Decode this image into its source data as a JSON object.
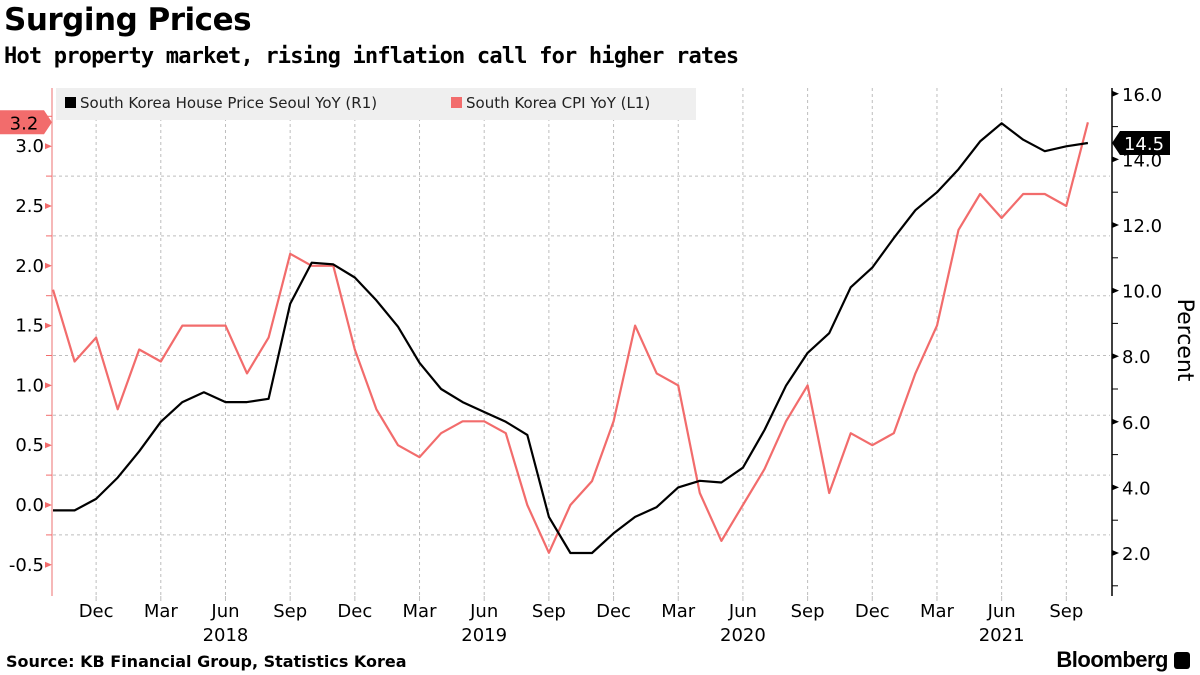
{
  "header": {
    "title": "Surging Prices",
    "subtitle": "Hot property market, rising inflation call for higher rates"
  },
  "footer": {
    "source": "Source: KB Financial Group, Statistics Korea",
    "brand": "Bloomberg"
  },
  "colors": {
    "house": "#000000",
    "cpi": "#f26c6c",
    "legend_bg": "#efefef"
  },
  "chart_data": {
    "type": "line",
    "title": "Surging Prices",
    "subtitle": "Hot property market, rising inflation call for higher rates",
    "xlabel": "",
    "ylabel_right": "Percent",
    "ylabel_left": "",
    "grid": true,
    "legend_position": "top-left",
    "x": [
      "2017-10",
      "2017-11",
      "2017-12",
      "2018-01",
      "2018-02",
      "2018-03",
      "2018-04",
      "2018-05",
      "2018-06",
      "2018-07",
      "2018-08",
      "2018-09",
      "2018-10",
      "2018-11",
      "2018-12",
      "2019-01",
      "2019-02",
      "2019-03",
      "2019-04",
      "2019-05",
      "2019-06",
      "2019-07",
      "2019-08",
      "2019-09",
      "2019-10",
      "2019-11",
      "2019-12",
      "2020-01",
      "2020-02",
      "2020-03",
      "2020-04",
      "2020-05",
      "2020-06",
      "2020-07",
      "2020-08",
      "2020-09",
      "2020-10",
      "2020-11",
      "2020-12",
      "2021-01",
      "2021-02",
      "2021-03",
      "2021-04",
      "2021-05",
      "2021-06",
      "2021-07",
      "2021-08",
      "2021-09",
      "2021-10"
    ],
    "x_tick_labels": [
      {
        "label": "Dec",
        "index": 2
      },
      {
        "label": "Mar",
        "index": 5
      },
      {
        "label": "Jun",
        "index": 8
      },
      {
        "label": "Sep",
        "index": 11
      },
      {
        "label": "Dec",
        "index": 14
      },
      {
        "label": "Mar",
        "index": 17
      },
      {
        "label": "Jun",
        "index": 20
      },
      {
        "label": "Sep",
        "index": 23
      },
      {
        "label": "Dec",
        "index": 26
      },
      {
        "label": "Mar",
        "index": 29
      },
      {
        "label": "Jun",
        "index": 32
      },
      {
        "label": "Sep",
        "index": 35
      },
      {
        "label": "Dec",
        "index": 38
      },
      {
        "label": "Mar",
        "index": 41
      },
      {
        "label": "Jun",
        "index": 44
      },
      {
        "label": "Sep",
        "index": 47
      }
    ],
    "x_year_labels": [
      {
        "label": "2018",
        "index": 8
      },
      {
        "label": "2019",
        "index": 20
      },
      {
        "label": "2020",
        "index": 32
      },
      {
        "label": "2021",
        "index": 44
      }
    ],
    "left_axis": {
      "ylim": [
        -0.75,
        3.4
      ],
      "ticks": [
        -0.5,
        0.0,
        0.5,
        1.0,
        1.5,
        2.0,
        2.5,
        3.0
      ],
      "tick_labels": [
        "-0.5",
        "0.0",
        "0.5",
        "1.0",
        "1.5",
        "2.0",
        "2.5",
        "3.0"
      ]
    },
    "right_axis": {
      "ylim": [
        0.8,
        16.3
      ],
      "ticks": [
        2.0,
        4.0,
        6.0,
        8.0,
        10.0,
        12.0,
        14.0,
        16.0
      ],
      "tick_labels": [
        "2.0",
        "4.0",
        "6.0",
        "8.0",
        "10.0",
        "12.0",
        "14.0",
        "16.0"
      ]
    },
    "series": [
      {
        "name": "South Korea House Price Seoul YoY",
        "axis_tag": "(R1)",
        "axis": "right",
        "last_value_label": "14.5",
        "values": [
          3.3,
          3.3,
          3.65,
          4.3,
          5.1,
          6.0,
          6.6,
          6.9,
          6.6,
          6.6,
          6.7,
          9.6,
          10.85,
          10.8,
          10.4,
          9.7,
          8.9,
          7.8,
          7.0,
          6.6,
          6.3,
          6.0,
          5.6,
          3.1,
          2.0,
          2.0,
          2.6,
          3.1,
          3.4,
          4.0,
          4.2,
          4.15,
          4.6,
          5.75,
          7.1,
          8.1,
          8.7,
          10.1,
          10.7,
          11.6,
          12.45,
          13.0,
          13.7,
          14.55,
          15.1,
          14.6,
          14.25,
          14.4,
          14.5
        ]
      },
      {
        "name": "South Korea CPI YoY",
        "axis_tag": "(L1)",
        "axis": "left",
        "last_value_label": "3.2",
        "values": [
          1.8,
          1.2,
          1.4,
          0.8,
          1.3,
          1.2,
          1.5,
          1.5,
          1.5,
          1.1,
          1.4,
          2.1,
          2.0,
          2.0,
          1.3,
          0.8,
          0.5,
          0.4,
          0.6,
          0.7,
          0.7,
          0.6,
          0.0,
          -0.4,
          0.0,
          0.2,
          0.7,
          1.5,
          1.1,
          1.0,
          0.1,
          -0.3,
          0.0,
          0.3,
          0.7,
          1.0,
          0.1,
          0.6,
          0.5,
          0.6,
          1.1,
          1.5,
          2.3,
          2.6,
          2.4,
          2.6,
          2.6,
          2.5,
          3.2
        ]
      }
    ]
  }
}
